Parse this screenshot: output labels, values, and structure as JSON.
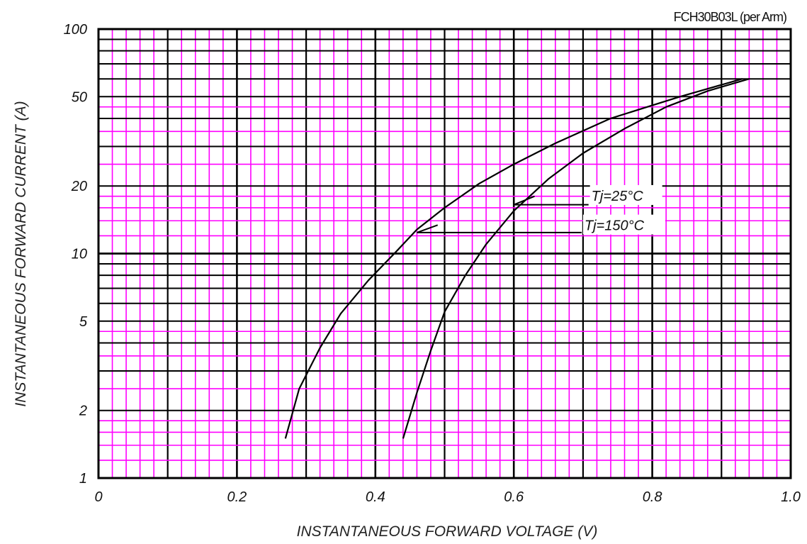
{
  "chart_data": {
    "type": "line",
    "title": "FCH30B03L (per Arm)",
    "xlabel": "INSTANTANEOUS FORWARD VOLTAGE (V)",
    "ylabel": "INSTANTANEOUS FORWARD CURRENT (A)",
    "xlim": [
      0,
      1.0
    ],
    "ylim": [
      1,
      100
    ],
    "yscale": "log",
    "grid": true,
    "grid_color": "#ff00ff",
    "x_ticks": [
      "0",
      "0.2",
      "0.4",
      "0.6",
      "0.8",
      "1.0"
    ],
    "y_ticks": [
      "1",
      "2",
      "5",
      "10",
      "20",
      "50",
      "100"
    ],
    "series": [
      {
        "name": "Tj=150°C",
        "x": [
          0.27,
          0.29,
          0.32,
          0.35,
          0.39,
          0.43,
          0.46,
          0.5,
          0.55,
          0.6,
          0.66,
          0.74,
          0.84,
          0.93
        ],
        "y": [
          1.5,
          2.5,
          3.8,
          5.4,
          7.6,
          10.2,
          12.8,
          16,
          20.5,
          25,
          31,
          40,
          50,
          60
        ]
      },
      {
        "name": "Tj=25°C",
        "x": [
          0.44,
          0.46,
          0.48,
          0.5,
          0.53,
          0.56,
          0.6,
          0.65,
          0.7,
          0.76,
          0.82,
          0.88,
          0.94
        ],
        "y": [
          1.5,
          2.4,
          3.7,
          5.5,
          8.0,
          11.0,
          15.5,
          21.5,
          28,
          36,
          45,
          53,
          60
        ]
      }
    ],
    "annotations": [
      {
        "label": "Tj=25°C",
        "x": 0.7,
        "y": 17
      },
      {
        "label": "Tj=150°C",
        "x": 0.69,
        "y": 13
      }
    ]
  }
}
